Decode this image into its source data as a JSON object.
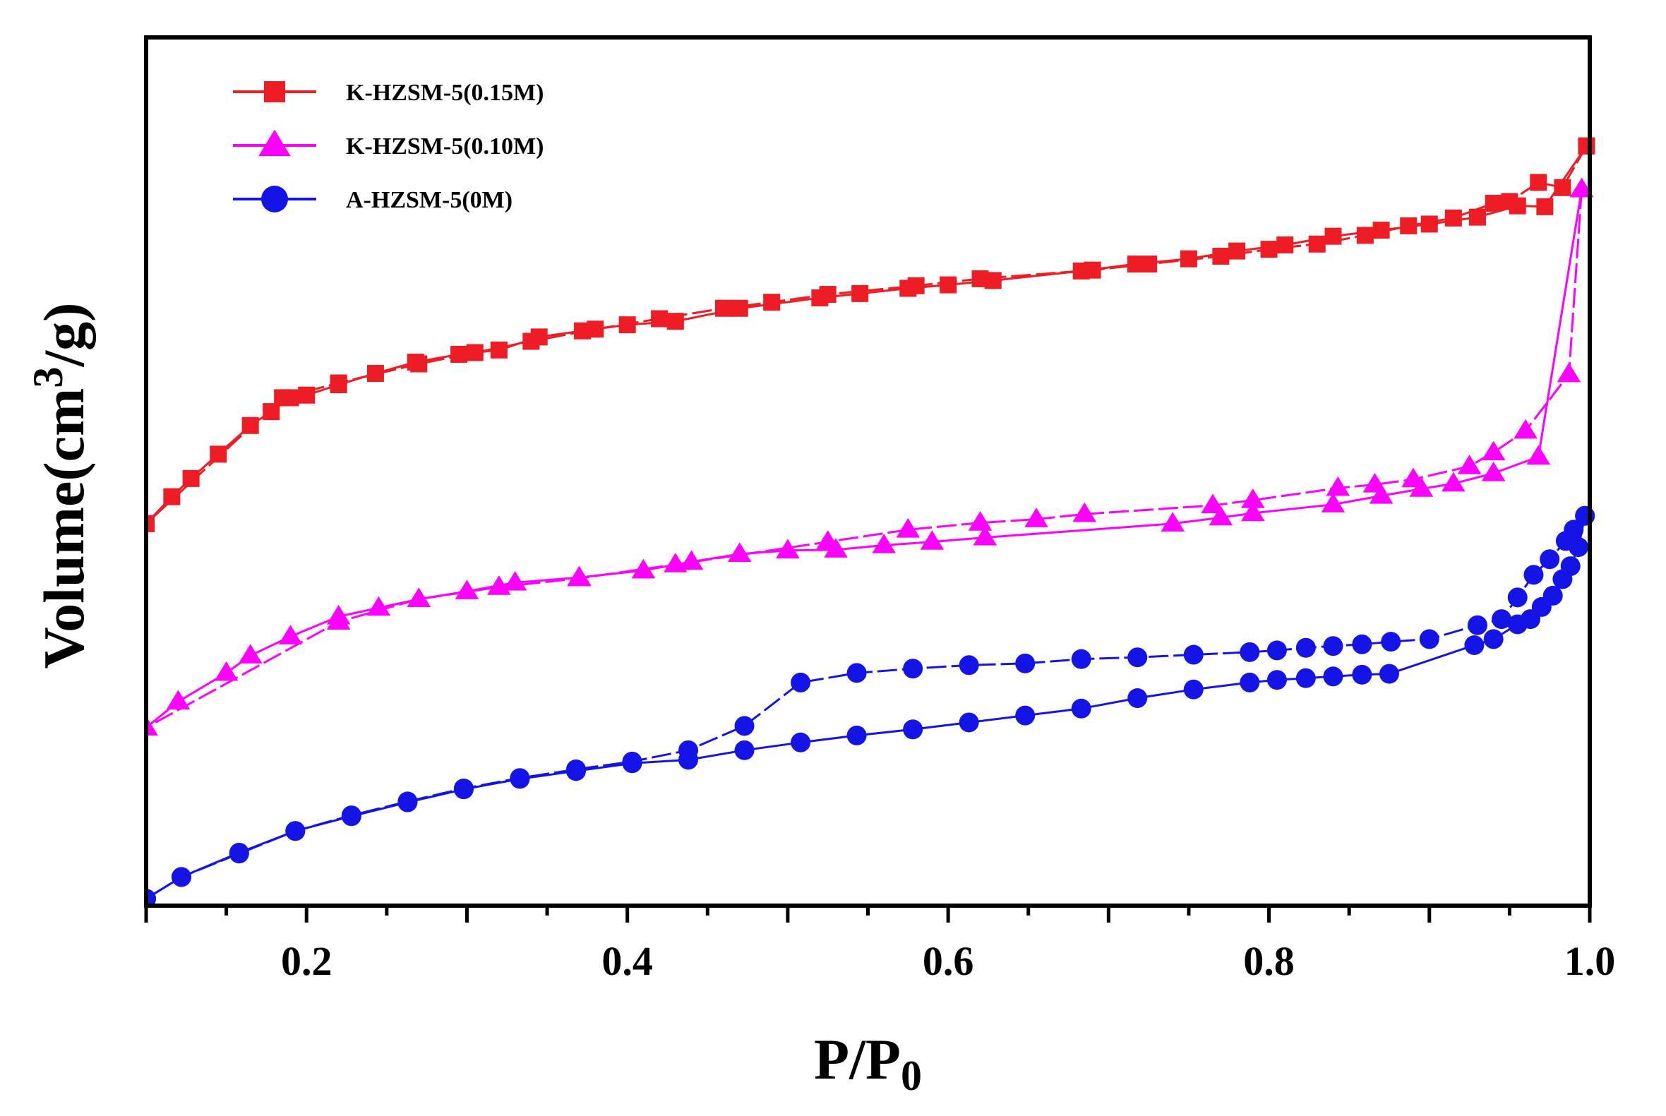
{
  "chart_data": {
    "type": "line",
    "title": "",
    "xlabel": {
      "main": "P/P",
      "sub": "0"
    },
    "ylabel": {
      "pre": "Volume(cm",
      "sup": "3",
      "post": "/g)"
    },
    "xlim": [
      0.1,
      1.0
    ],
    "ylim": [
      0,
      10
    ],
    "x_ticks": [
      0.2,
      0.4,
      0.6,
      0.8,
      1.0
    ],
    "x_tick_labels": [
      "0.2",
      "0.4",
      "0.6",
      "0.8",
      "1.0"
    ],
    "y_tick_labels_shown": false,
    "legend_position": "top-left",
    "series": [
      {
        "name": "K-HZSM-5(0.15M)",
        "color": "#ee1c24",
        "marker": "square",
        "adsorption": {
          "x": [
            0.1,
            0.116,
            0.128,
            0.145,
            0.165,
            0.178,
            0.19,
            0.2,
            0.22,
            0.243,
            0.268,
            0.295,
            0.32,
            0.345,
            0.372,
            0.4,
            0.43,
            0.47,
            0.52,
            0.545,
            0.575,
            0.6,
            0.628,
            0.683,
            0.717,
            0.75,
            0.78,
            0.81,
            0.84,
            0.87,
            0.9,
            0.93,
            0.955,
            0.972,
            0.998
          ],
          "y": [
            4.4,
            4.71,
            4.92,
            5.2,
            5.53,
            5.69,
            5.85,
            5.88,
            6.0,
            6.13,
            6.26,
            6.35,
            6.4,
            6.55,
            6.62,
            6.69,
            6.73,
            6.88,
            7.0,
            7.05,
            7.11,
            7.15,
            7.2,
            7.31,
            7.39,
            7.45,
            7.54,
            7.61,
            7.71,
            7.78,
            7.85,
            7.93,
            8.06,
            8.05,
            8.75
          ]
        },
        "desorption": {
          "x": [
            0.998,
            0.983,
            0.968,
            0.95,
            0.94,
            0.915,
            0.887,
            0.86,
            0.83,
            0.8,
            0.77,
            0.725,
            0.69,
            0.62,
            0.58,
            0.525,
            0.49,
            0.46,
            0.42,
            0.38,
            0.34,
            0.305,
            0.27,
            0.22,
            0.185,
            0.1
          ],
          "y": [
            8.75,
            8.27,
            8.33,
            8.11,
            8.09,
            7.92,
            7.83,
            7.72,
            7.62,
            7.56,
            7.48,
            7.39,
            7.32,
            7.22,
            7.14,
            7.04,
            6.95,
            6.88,
            6.76,
            6.64,
            6.5,
            6.37,
            6.24,
            6.02,
            5.85,
            4.4
          ]
        }
      },
      {
        "name": "K-HZSM-5(0.10M)",
        "color": "#ff00ff",
        "marker": "triangle",
        "adsorption": {
          "x": [
            0.1,
            0.12,
            0.15,
            0.165,
            0.19,
            0.22,
            0.245,
            0.27,
            0.3,
            0.33,
            0.37,
            0.41,
            0.44,
            0.47,
            0.5,
            0.53,
            0.56,
            0.59,
            0.623,
            0.74,
            0.77,
            0.79,
            0.84,
            0.87,
            0.895,
            0.915,
            0.94,
            0.968,
            0.995
          ],
          "y": [
            2.05,
            2.35,
            2.68,
            2.88,
            3.1,
            3.33,
            3.43,
            3.53,
            3.62,
            3.72,
            3.78,
            3.86,
            3.96,
            4.05,
            4.09,
            4.1,
            4.15,
            4.19,
            4.24,
            4.4,
            4.47,
            4.52,
            4.62,
            4.72,
            4.8,
            4.86,
            4.98,
            5.17,
            8.25
          ]
        },
        "desorption": {
          "x": [
            0.995,
            0.987,
            0.96,
            0.94,
            0.925,
            0.89,
            0.866,
            0.843,
            0.79,
            0.765,
            0.685,
            0.655,
            0.62,
            0.575,
            0.525,
            0.43,
            0.37,
            0.32,
            0.27,
            0.22,
            0.1
          ],
          "y": [
            8.25,
            6.12,
            5.47,
            5.22,
            5.06,
            4.91,
            4.85,
            4.81,
            4.67,
            4.61,
            4.51,
            4.45,
            4.41,
            4.33,
            4.19,
            3.93,
            3.77,
            3.67,
            3.53,
            3.27,
            2.05
          ]
        }
      },
      {
        "name": "A-HZSM-5(0M)",
        "color": "#1414e6",
        "marker": "circle",
        "adsorption": {
          "x": [
            0.1,
            0.122,
            0.158,
            0.193,
            0.228,
            0.263,
            0.298,
            0.333,
            0.368,
            0.403,
            0.438,
            0.473,
            0.508,
            0.543,
            0.578,
            0.613,
            0.648,
            0.683,
            0.718,
            0.753,
            0.788,
            0.805,
            0.823,
            0.84,
            0.858,
            0.875,
            0.928,
            0.94,
            0.955,
            0.963,
            0.97,
            0.977,
            0.983,
            0.988,
            0.993,
            0.997
          ],
          "y": [
            0.08,
            0.33,
            0.61,
            0.86,
            1.03,
            1.19,
            1.34,
            1.46,
            1.55,
            1.64,
            1.68,
            1.79,
            1.88,
            1.96,
            2.03,
            2.11,
            2.19,
            2.27,
            2.39,
            2.49,
            2.57,
            2.6,
            2.62,
            2.64,
            2.66,
            2.67,
            3.0,
            3.07,
            3.24,
            3.3,
            3.44,
            3.57,
            3.76,
            3.91,
            4.13,
            4.49
          ]
        },
        "desorption": {
          "x": [
            0.997,
            0.99,
            0.985,
            0.975,
            0.965,
            0.955,
            0.945,
            0.93,
            0.9,
            0.876,
            0.858,
            0.84,
            0.823,
            0.805,
            0.788,
            0.753,
            0.718,
            0.683,
            0.648,
            0.613,
            0.578,
            0.543,
            0.508,
            0.473,
            0.438,
            0.403,
            0.368,
            0.333,
            0.298,
            0.263,
            0.228,
            0.193,
            0.158,
            0.122,
            0.1
          ],
          "y": [
            4.49,
            4.33,
            4.2,
            3.99,
            3.81,
            3.55,
            3.3,
            3.23,
            3.07,
            3.04,
            3.01,
            2.99,
            2.97,
            2.94,
            2.92,
            2.89,
            2.86,
            2.84,
            2.79,
            2.77,
            2.73,
            2.68,
            2.57,
            2.07,
            1.79,
            1.66,
            1.57,
            1.47,
            1.35,
            1.2,
            1.04,
            0.86,
            0.6,
            0.33,
            0.08
          ]
        }
      }
    ]
  }
}
